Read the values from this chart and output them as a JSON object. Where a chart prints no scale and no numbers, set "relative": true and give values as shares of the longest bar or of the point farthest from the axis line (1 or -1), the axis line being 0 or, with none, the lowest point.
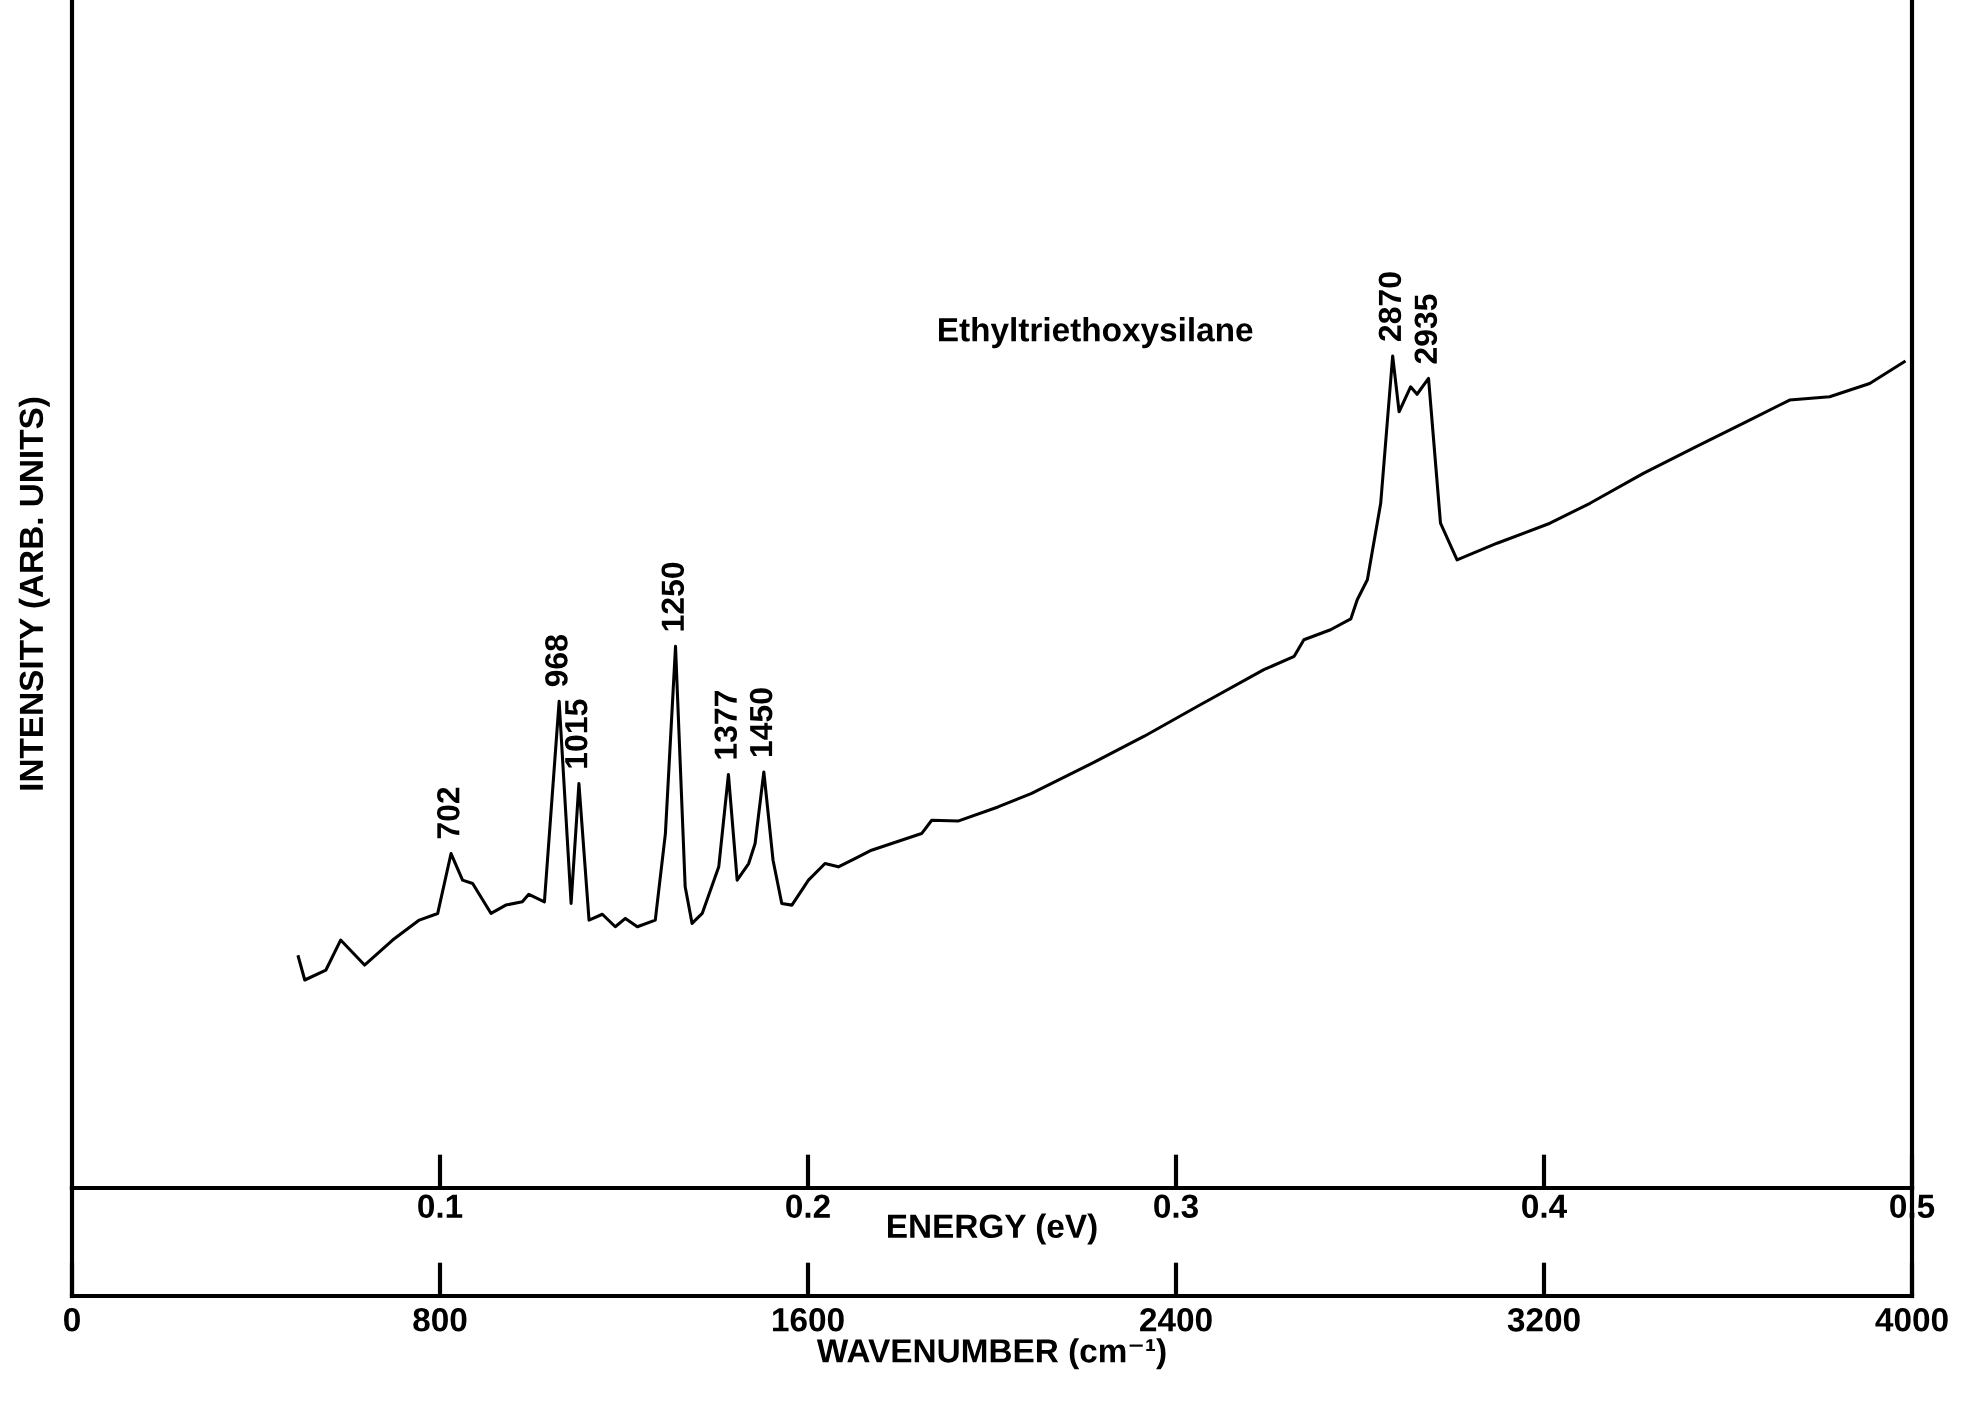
{
  "chart_data": {
    "type": "line",
    "title": "Ethyltriethoxysilane",
    "ylabel": "INTENSITY (ARB. UNITS)",
    "xlabel": "WAVENUMBER (cm⁻¹)",
    "x2label": "ENERGY (eV)",
    "relative": true,
    "xlim": [
      0,
      4000
    ],
    "xticks": [
      0,
      800,
      1600,
      2400,
      3200,
      4000
    ],
    "x2lim": [
      0,
      0.5
    ],
    "x2ticks": [
      0.1,
      0.2,
      0.3,
      0.4,
      0.5
    ],
    "series": [
      {
        "color": "#000000",
        "x": [
          492,
          506,
          552,
          584,
          636,
          697,
          755,
          795,
          824,
          849,
          871,
          911,
          943,
          979,
          993,
          1027,
          1059,
          1085,
          1102,
          1124,
          1153,
          1181,
          1203,
          1229,
          1268,
          1290,
          1312,
          1333,
          1348,
          1370,
          1406,
          1427,
          1446,
          1471,
          1485,
          1504,
          1524,
          1543,
          1565,
          1601,
          1637,
          1666,
          1702,
          1738,
          1847,
          1869,
          1926,
          2013,
          2085,
          2216,
          2331,
          2447,
          2591,
          2657,
          2678,
          2736,
          2780,
          2794,
          2816,
          2845,
          2871,
          2885,
          2910,
          2924,
          2949,
          2975,
          3011,
          3098,
          3213,
          3300,
          3416,
          3531,
          3647,
          3734,
          3821,
          3908,
          3983
        ],
        "values": [
          0.278,
          0.25,
          0.262,
          0.298,
          0.268,
          0.298,
          0.322,
          0.33,
          0.402,
          0.37,
          0.366,
          0.33,
          0.34,
          0.344,
          0.353,
          0.344,
          0.585,
          0.342,
          0.486,
          0.322,
          0.329,
          0.314,
          0.324,
          0.314,
          0.322,
          0.426,
          0.651,
          0.362,
          0.318,
          0.33,
          0.386,
          0.497,
          0.37,
          0.39,
          0.414,
          0.5,
          0.394,
          0.342,
          0.34,
          0.37,
          0.39,
          0.386,
          0.396,
          0.406,
          0.426,
          0.442,
          0.441,
          0.458,
          0.474,
          0.51,
          0.543,
          0.579,
          0.623,
          0.639,
          0.659,
          0.671,
          0.684,
          0.707,
          0.731,
          0.823,
          1.0,
          0.933,
          0.963,
          0.954,
          0.973,
          0.799,
          0.755,
          0.775,
          0.799,
          0.823,
          0.859,
          0.891,
          0.923,
          0.947,
          0.951,
          0.967,
          0.993
        ]
      }
    ],
    "annotations": [
      {
        "text": "702",
        "x": 824,
        "y": 0.402
      },
      {
        "text": "968",
        "x": 1059,
        "y": 0.585
      },
      {
        "text": "1015",
        "x": 1102,
        "y": 0.486
      },
      {
        "text": "1250",
        "x": 1312,
        "y": 0.651
      },
      {
        "text": "1377",
        "x": 1427,
        "y": 0.497
      },
      {
        "text": "1450",
        "x": 1504,
        "y": 0.5
      },
      {
        "text": "2870",
        "x": 2871,
        "y": 1.0
      },
      {
        "text": "2935",
        "x": 2949,
        "y": 0.973
      }
    ]
  }
}
